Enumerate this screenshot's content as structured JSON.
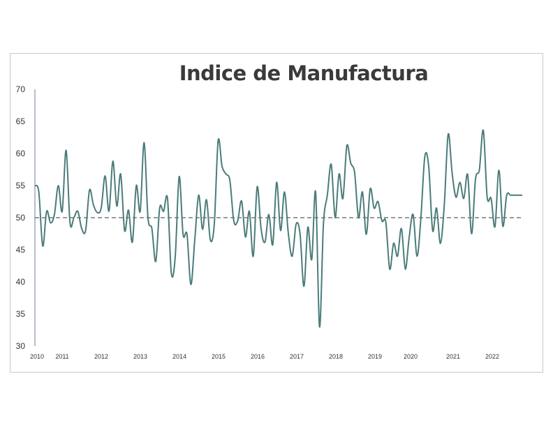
{
  "chart_data": {
    "type": "line",
    "title": "Indice de Manufactura",
    "xlabel": "",
    "ylabel": "",
    "ylim": [
      30,
      70
    ],
    "yticks": [
      30,
      35,
      40,
      45,
      50,
      55,
      60,
      65,
      70
    ],
    "xticks": [
      "2010",
      "2011",
      "2012",
      "2013",
      "2014",
      "2015",
      "2016",
      "2017",
      "2018",
      "2019",
      "2020",
      "2021",
      "2022"
    ],
    "reference_line": 50,
    "grid": false,
    "legend": "none",
    "line_color": "#4a7c7a",
    "reference_color": "#333333",
    "x": [
      2010.0,
      2010.1,
      2010.2,
      2010.3,
      2010.4,
      2010.5,
      2010.6,
      2010.7,
      2010.8,
      2010.9,
      2011.0,
      2011.1,
      2011.2,
      2011.3,
      2011.4,
      2011.5,
      2011.6,
      2011.7,
      2011.8,
      2011.9,
      2012.0,
      2012.1,
      2012.2,
      2012.3,
      2012.4,
      2012.5,
      2012.6,
      2012.7,
      2012.8,
      2012.9,
      2013.0,
      2013.1,
      2013.2,
      2013.3,
      2013.4,
      2013.5,
      2013.6,
      2013.7,
      2013.8,
      2013.9,
      2014.0,
      2014.1,
      2014.2,
      2014.3,
      2014.4,
      2014.5,
      2014.6,
      2014.7,
      2014.8,
      2014.9,
      2015.0,
      2015.1,
      2015.2,
      2015.3,
      2015.4,
      2015.5,
      2015.6,
      2015.7,
      2015.8,
      2015.9,
      2016.0,
      2016.1,
      2016.2,
      2016.3,
      2016.4,
      2016.5,
      2016.6,
      2016.7,
      2016.8,
      2016.9,
      2017.0,
      2017.1,
      2017.2,
      2017.3,
      2017.4,
      2017.5,
      2017.6,
      2017.7,
      2017.8,
      2017.9,
      2018.0,
      2018.1,
      2018.2,
      2018.3,
      2018.4,
      2018.5,
      2018.6,
      2018.7,
      2018.8,
      2018.9,
      2019.0,
      2019.1,
      2019.2,
      2019.3,
      2019.4,
      2019.5,
      2019.6,
      2019.7,
      2019.8,
      2019.9,
      2020.0,
      2020.1,
      2020.2,
      2020.3,
      2020.4,
      2020.5,
      2020.6,
      2020.7,
      2020.8,
      2020.9,
      2021.0,
      2021.1,
      2021.2,
      2021.3,
      2021.4,
      2021.5,
      2021.6,
      2021.7,
      2021.8,
      2021.9,
      2022.0,
      2022.1,
      2022.2,
      2022.3,
      2022.4,
      2022.5
    ],
    "values": [
      55.0,
      54.0,
      45.6,
      51.0,
      49.2,
      50.5,
      55.0,
      51.0,
      60.5,
      49.2,
      50.0,
      51.0,
      48.3,
      48.0,
      54.3,
      52.0,
      50.8,
      51.5,
      56.5,
      51.0,
      58.8,
      51.8,
      56.8,
      48.0,
      51.2,
      46.2,
      55.0,
      51.0,
      61.7,
      50.0,
      48.3,
      43.2,
      51.5,
      51.0,
      53.0,
      41.3,
      44.0,
      56.4,
      47.4,
      47.4,
      39.6,
      46.5,
      53.5,
      48.2,
      52.8,
      46.5,
      49.0,
      62.0,
      58.0,
      56.8,
      55.8,
      49.5,
      49.5,
      52.6,
      47.0,
      51.0,
      44.0,
      54.8,
      48.3,
      46.2,
      50.5,
      45.8,
      55.5,
      48.0,
      54.0,
      47.5,
      44.0,
      49.0,
      47.5,
      39.3,
      48.5,
      43.5,
      54.0,
      33.0,
      49.0,
      53.5,
      58.3,
      50.0,
      56.8,
      53.0,
      61.2,
      58.5,
      57.0,
      50.0,
      54.0,
      47.4,
      54.5,
      51.5,
      52.5,
      49.5,
      49.3,
      42.0,
      46.0,
      44.0,
      48.3,
      42.0,
      47.0,
      50.5,
      44.0,
      50.0,
      59.5,
      58.0,
      48.0,
      51.5,
      46.0,
      52.0,
      63.0,
      57.0,
      53.2,
      55.5,
      53.0,
      56.7,
      47.5,
      56.0,
      57.5,
      63.6,
      53.2,
      53.0,
      48.6,
      57.4,
      48.7,
      53.5,
      53.5,
      53.5,
      53.5,
      53.5
    ]
  }
}
